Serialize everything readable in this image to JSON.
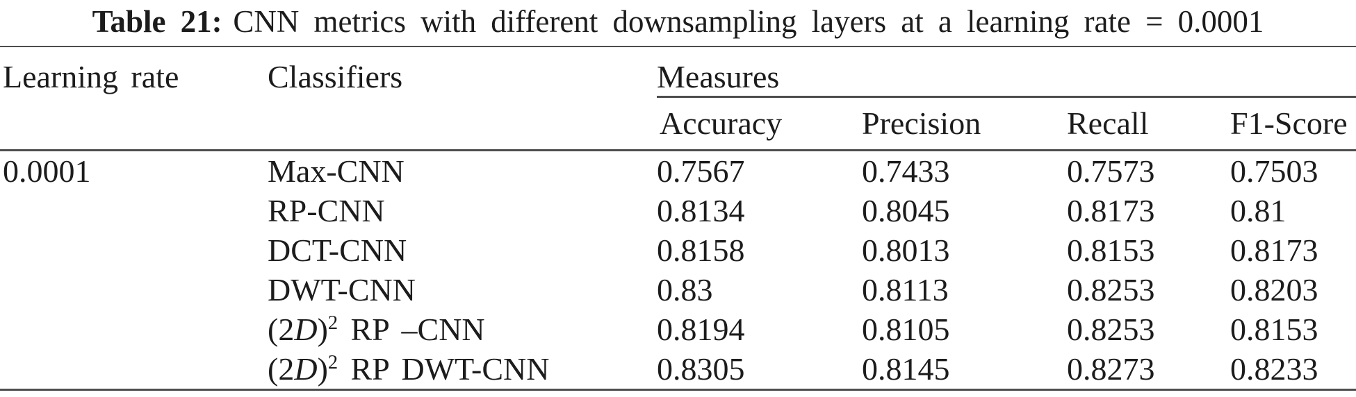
{
  "theme": {
    "text_color": "#1c1c1c",
    "rule_color": "#4d4d4d",
    "background": "#ffffff"
  },
  "caption": {
    "label": "Table 21:",
    "text": "CNN metrics with different downsampling layers at a learning rate = 0.0001"
  },
  "table": {
    "columns": {
      "learning_rate": "Learning rate",
      "classifiers": "Classifiers",
      "measures": "Measures",
      "measure_columns": [
        "Accuracy",
        "Precision",
        "Recall",
        "F1-Score"
      ]
    },
    "rows": [
      {
        "learning_rate": "0.0001",
        "classifier": [
          {
            "text": "Max-CNN",
            "style": "n"
          }
        ],
        "values": [
          "0.7567",
          "0.7433",
          "0.7573",
          "0.7503"
        ]
      },
      {
        "learning_rate": "",
        "classifier": [
          {
            "text": "RP-CNN",
            "style": "n"
          }
        ],
        "values": [
          "0.8134",
          "0.8045",
          "0.8173",
          "0.81"
        ]
      },
      {
        "learning_rate": "",
        "classifier": [
          {
            "text": "DCT-CNN",
            "style": "n"
          }
        ],
        "values": [
          "0.8158",
          "0.8013",
          "0.8153",
          "0.8173"
        ]
      },
      {
        "learning_rate": "",
        "classifier": [
          {
            "text": "DWT-CNN",
            "style": "n"
          }
        ],
        "values": [
          "0.83",
          "0.8113",
          "0.8253",
          "0.8203"
        ]
      },
      {
        "learning_rate": "",
        "classifier": [
          {
            "text": "(2",
            "style": "n"
          },
          {
            "text": "D",
            "style": "i"
          },
          {
            "text": ")",
            "style": "n"
          },
          {
            "text": "2",
            "style": "sup"
          },
          {
            "text": " RP –CNN",
            "style": "n"
          }
        ],
        "values": [
          "0.8194",
          "0.8105",
          "0.8253",
          "0.8153"
        ]
      },
      {
        "learning_rate": "",
        "classifier": [
          {
            "text": "(2",
            "style": "n"
          },
          {
            "text": "D",
            "style": "i"
          },
          {
            "text": ")",
            "style": "n"
          },
          {
            "text": "2",
            "style": "sup"
          },
          {
            "text": " RP DWT-CNN",
            "style": "n"
          }
        ],
        "values": [
          "0.8305",
          "0.8145",
          "0.8273",
          "0.8233"
        ]
      }
    ]
  }
}
